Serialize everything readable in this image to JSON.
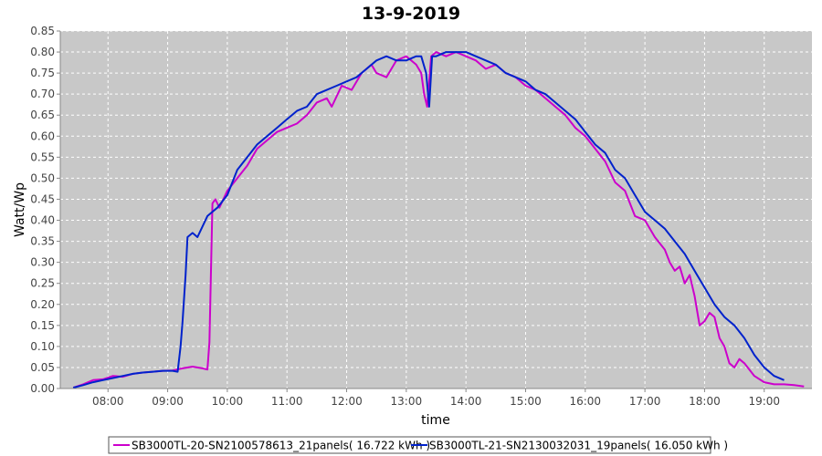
{
  "chart_data": {
    "type": "line",
    "title": "13-9-2019",
    "xlabel": "time",
    "ylabel": "Watt/Wp",
    "xlim": [
      "07:12",
      "19:48"
    ],
    "ylim": [
      0,
      0.85
    ],
    "x_ticks": [
      "08:00",
      "09:00",
      "10:00",
      "11:00",
      "12:00",
      "13:00",
      "14:00",
      "15:00",
      "16:00",
      "17:00",
      "18:00",
      "19:00"
    ],
    "y_ticks": [
      "0.00",
      "0.05",
      "0.10",
      "0.15",
      "0.20",
      "0.25",
      "0.30",
      "0.35",
      "0.40",
      "0.45",
      "0.50",
      "0.55",
      "0.60",
      "0.65",
      "0.70",
      "0.75",
      "0.80",
      "0.85"
    ],
    "grid": true,
    "legend_position": "bottom",
    "colors": {
      "plot_bg": "#c8c8c8",
      "grid": "#ffffff",
      "series_1": "#cc00cc",
      "series_2": "#0022cc"
    },
    "series": [
      {
        "name": "SB3000TL-20-SN2100578613_21panels( 16.722 kWh )",
        "x": [
          "07:25",
          "07:35",
          "07:45",
          "07:55",
          "08:05",
          "08:15",
          "08:25",
          "08:35",
          "08:45",
          "08:55",
          "09:05",
          "09:15",
          "09:25",
          "09:35",
          "09:40",
          "09:42",
          "09:45",
          "09:48",
          "09:52",
          "10:00",
          "10:10",
          "10:20",
          "10:30",
          "10:40",
          "10:50",
          "11:00",
          "11:10",
          "11:20",
          "11:30",
          "11:40",
          "11:45",
          "11:55",
          "12:05",
          "12:15",
          "12:25",
          "12:30",
          "12:40",
          "12:50",
          "13:00",
          "13:10",
          "13:15",
          "13:18",
          "13:21",
          "13:25",
          "13:30",
          "13:40",
          "13:50",
          "14:00",
          "14:10",
          "14:20",
          "14:30",
          "14:40",
          "14:50",
          "15:00",
          "15:10",
          "15:20",
          "15:30",
          "15:40",
          "15:50",
          "16:00",
          "16:10",
          "16:20",
          "16:30",
          "16:40",
          "16:45",
          "16:50",
          "17:00",
          "17:10",
          "17:20",
          "17:25",
          "17:30",
          "17:35",
          "17:40",
          "17:45",
          "17:50",
          "17:55",
          "18:00",
          "18:05",
          "18:10",
          "18:15",
          "18:20",
          "18:25",
          "18:30",
          "18:35",
          "18:40",
          "18:50",
          "19:00",
          "19:10",
          "19:20",
          "19:30",
          "19:40"
        ],
        "values": [
          0.002,
          0.01,
          0.02,
          0.022,
          0.03,
          0.028,
          0.035,
          0.038,
          0.04,
          0.042,
          0.043,
          0.048,
          0.052,
          0.048,
          0.045,
          0.11,
          0.44,
          0.45,
          0.43,
          0.47,
          0.5,
          0.53,
          0.57,
          0.59,
          0.61,
          0.62,
          0.63,
          0.65,
          0.68,
          0.69,
          0.67,
          0.72,
          0.71,
          0.75,
          0.77,
          0.75,
          0.74,
          0.78,
          0.79,
          0.77,
          0.75,
          0.7,
          0.67,
          0.79,
          0.8,
          0.79,
          0.8,
          0.79,
          0.78,
          0.76,
          0.77,
          0.75,
          0.74,
          0.72,
          0.71,
          0.69,
          0.67,
          0.65,
          0.62,
          0.6,
          0.57,
          0.54,
          0.49,
          0.47,
          0.44,
          0.41,
          0.4,
          0.36,
          0.33,
          0.3,
          0.28,
          0.29,
          0.25,
          0.27,
          0.22,
          0.15,
          0.16,
          0.18,
          0.17,
          0.12,
          0.1,
          0.06,
          0.05,
          0.07,
          0.06,
          0.03,
          0.015,
          0.01,
          0.01,
          0.008,
          0.005
        ]
      },
      {
        "name": "SB3000TL-21-SN2130032031_19panels( 16.050 kWh )",
        "x": [
          "07:25",
          "07:35",
          "07:45",
          "07:55",
          "08:05",
          "08:15",
          "08:25",
          "08:35",
          "08:45",
          "08:55",
          "09:05",
          "09:10",
          "09:13",
          "09:15",
          "09:18",
          "09:20",
          "09:25",
          "09:30",
          "09:40",
          "09:50",
          "10:00",
          "10:10",
          "10:20",
          "10:30",
          "10:40",
          "10:50",
          "11:00",
          "11:10",
          "11:20",
          "11:30",
          "11:40",
          "11:50",
          "12:00",
          "12:10",
          "12:20",
          "12:30",
          "12:40",
          "12:50",
          "13:00",
          "13:10",
          "13:15",
          "13:20",
          "13:23",
          "13:26",
          "13:30",
          "13:40",
          "13:50",
          "14:00",
          "14:10",
          "14:20",
          "14:30",
          "14:40",
          "14:50",
          "15:00",
          "15:10",
          "15:20",
          "15:30",
          "15:40",
          "15:50",
          "16:00",
          "16:10",
          "16:20",
          "16:30",
          "16:40",
          "16:50",
          "17:00",
          "17:10",
          "17:20",
          "17:30",
          "17:40",
          "17:50",
          "18:00",
          "18:10",
          "18:20",
          "18:30",
          "18:40",
          "18:50",
          "19:00",
          "19:10",
          "19:20"
        ],
        "values": [
          0.002,
          0.008,
          0.015,
          0.02,
          0.025,
          0.03,
          0.035,
          0.038,
          0.04,
          0.042,
          0.042,
          0.04,
          0.1,
          0.16,
          0.27,
          0.36,
          0.37,
          0.36,
          0.41,
          0.43,
          0.46,
          0.52,
          0.55,
          0.58,
          0.6,
          0.62,
          0.64,
          0.66,
          0.67,
          0.7,
          0.71,
          0.72,
          0.73,
          0.74,
          0.76,
          0.78,
          0.79,
          0.78,
          0.78,
          0.79,
          0.79,
          0.75,
          0.67,
          0.79,
          0.79,
          0.8,
          0.8,
          0.8,
          0.79,
          0.78,
          0.77,
          0.75,
          0.74,
          0.73,
          0.71,
          0.7,
          0.68,
          0.66,
          0.64,
          0.61,
          0.58,
          0.56,
          0.52,
          0.5,
          0.46,
          0.42,
          0.4,
          0.38,
          0.35,
          0.32,
          0.28,
          0.24,
          0.2,
          0.17,
          0.15,
          0.12,
          0.08,
          0.05,
          0.03,
          0.02
        ]
      }
    ]
  }
}
